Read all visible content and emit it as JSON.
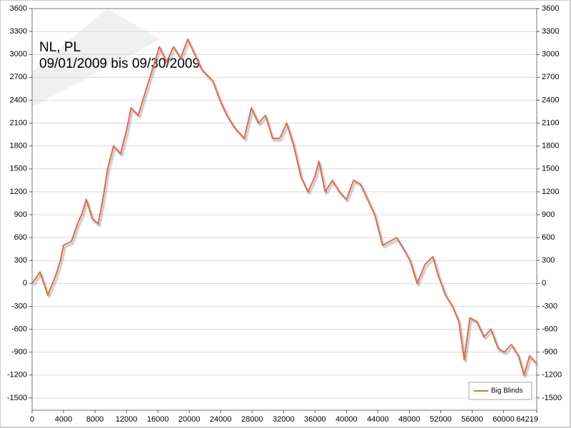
{
  "chart_data": {
    "type": "line",
    "title": "NL, PL",
    "subtitle": "09/01/2009 bis 09/30/2009",
    "x": [
      0,
      1000,
      2000,
      3000,
      3600,
      4000,
      5000,
      5850,
      6300,
      6900,
      7650,
      8400,
      9000,
      9600,
      10360,
      11260,
      12000,
      12600,
      13500,
      14400,
      15300,
      16200,
      17100,
      18000,
      18900,
      19800,
      20700,
      21600,
      23000,
      23900,
      24800,
      25700,
      27000,
      27900,
      28800,
      29700,
      30600,
      31500,
      32400,
      33300,
      34200,
      35100,
      36000,
      36500,
      37300,
      38200,
      39100,
      40000,
      40900,
      41800,
      42700,
      43600,
      44600,
      45500,
      46400,
      47300,
      48100,
      49000,
      50000,
      51000,
      51700,
      52600,
      53500,
      54300,
      55000,
      55700,
      56600,
      57500,
      58400,
      59300,
      60100,
      61000,
      61900,
      62600,
      63300,
      64219
    ],
    "series": [
      {
        "name": "Big Blinds",
        "color": "#e06a52",
        "values": [
          0,
          150,
          -150,
          100,
          300,
          500,
          550,
          800,
          900,
          1100,
          850,
          780,
          1100,
          1500,
          1800,
          1700,
          2000,
          2300,
          2200,
          2500,
          2800,
          3100,
          2900,
          3100,
          2950,
          3200,
          3000,
          2800,
          2650,
          2400,
          2200,
          2050,
          1900,
          2300,
          2100,
          2200,
          1900,
          1900,
          2100,
          1800,
          1400,
          1200,
          1400,
          1600,
          1200,
          1350,
          1200,
          1100,
          1350,
          1300,
          1100,
          900,
          500,
          550,
          600,
          450,
          300,
          0,
          250,
          350,
          100,
          -150,
          -300,
          -500,
          -1000,
          -450,
          -500,
          -700,
          -600,
          -850,
          -900,
          -800,
          -950,
          -1200,
          -950,
          -1050
        ]
      }
    ],
    "xlim": [
      0,
      64219
    ],
    "xticks": [
      0,
      4000,
      8000,
      12000,
      16000,
      20000,
      24000,
      28000,
      32000,
      36000,
      40000,
      44000,
      48000,
      52000,
      56000,
      60000,
      64219
    ],
    "ylim": [
      -1660,
      3600
    ],
    "yticks": [
      -1500,
      -1200,
      -900,
      -600,
      -300,
      0,
      300,
      600,
      900,
      1200,
      1500,
      1800,
      2100,
      2400,
      2700,
      3000,
      3300,
      3600
    ],
    "grid": true,
    "legend": "bottom-right"
  }
}
